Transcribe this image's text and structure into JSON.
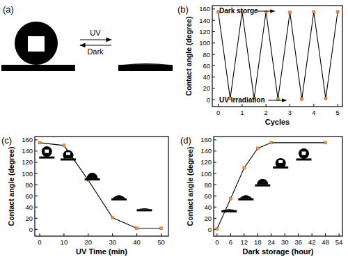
{
  "panel_a": {
    "label": "(a)",
    "forward": "UV",
    "backward": "Dark"
  },
  "chart_data": [
    {
      "type": "line",
      "title": "(b)",
      "x_label": "Cycles",
      "y_label": "Contact angle (degree)",
      "x": [
        0,
        0.5,
        1,
        1.5,
        2,
        2.5,
        3,
        3.5,
        4,
        4.5,
        5
      ],
      "values": [
        155,
        2,
        155,
        2,
        155,
        1,
        154,
        1,
        155,
        2,
        155
      ],
      "xlim": [
        -0.25,
        5.2
      ],
      "xticks": [
        0,
        1,
        2,
        3,
        4,
        5
      ],
      "ylim": [
        -12,
        166
      ],
      "yticks": [
        0,
        20,
        40,
        60,
        80,
        100,
        120,
        140,
        160
      ],
      "color": "#000000",
      "marker": "square",
      "annotations": [
        "Dark storge",
        "UV irradiation"
      ]
    },
    {
      "type": "line",
      "title": "(c)",
      "x_label": "UV Time (min)",
      "y_label": "Contact angle (degree)",
      "x": [
        0,
        10,
        20,
        30,
        40,
        50
      ],
      "values": [
        155,
        150,
        88,
        21,
        2,
        2
      ],
      "xlim": [
        -2,
        53
      ],
      "xticks": [
        0,
        10,
        20,
        30,
        40,
        50
      ],
      "ylim": [
        -12,
        166
      ],
      "yticks": [
        0,
        20,
        40,
        60,
        80,
        100,
        120,
        140,
        160
      ],
      "color": "#000000",
      "marker": "square"
    },
    {
      "type": "line",
      "title": "(d)",
      "x_label": "Dark storage (hour)",
      "y_label": "Contact angle (degree)",
      "x": [
        0,
        6,
        12,
        18,
        24,
        48
      ],
      "values": [
        1,
        55,
        110,
        145,
        155,
        155
      ],
      "xlim": [
        -1.5,
        55.5
      ],
      "xticks": [
        0,
        6,
        12,
        18,
        24,
        30,
        36,
        42,
        48,
        54
      ],
      "ylim": [
        -12,
        166
      ],
      "yticks": [
        0,
        20,
        40,
        60,
        80,
        100,
        120,
        140,
        160
      ],
      "color": "#000000",
      "marker": "square"
    }
  ]
}
